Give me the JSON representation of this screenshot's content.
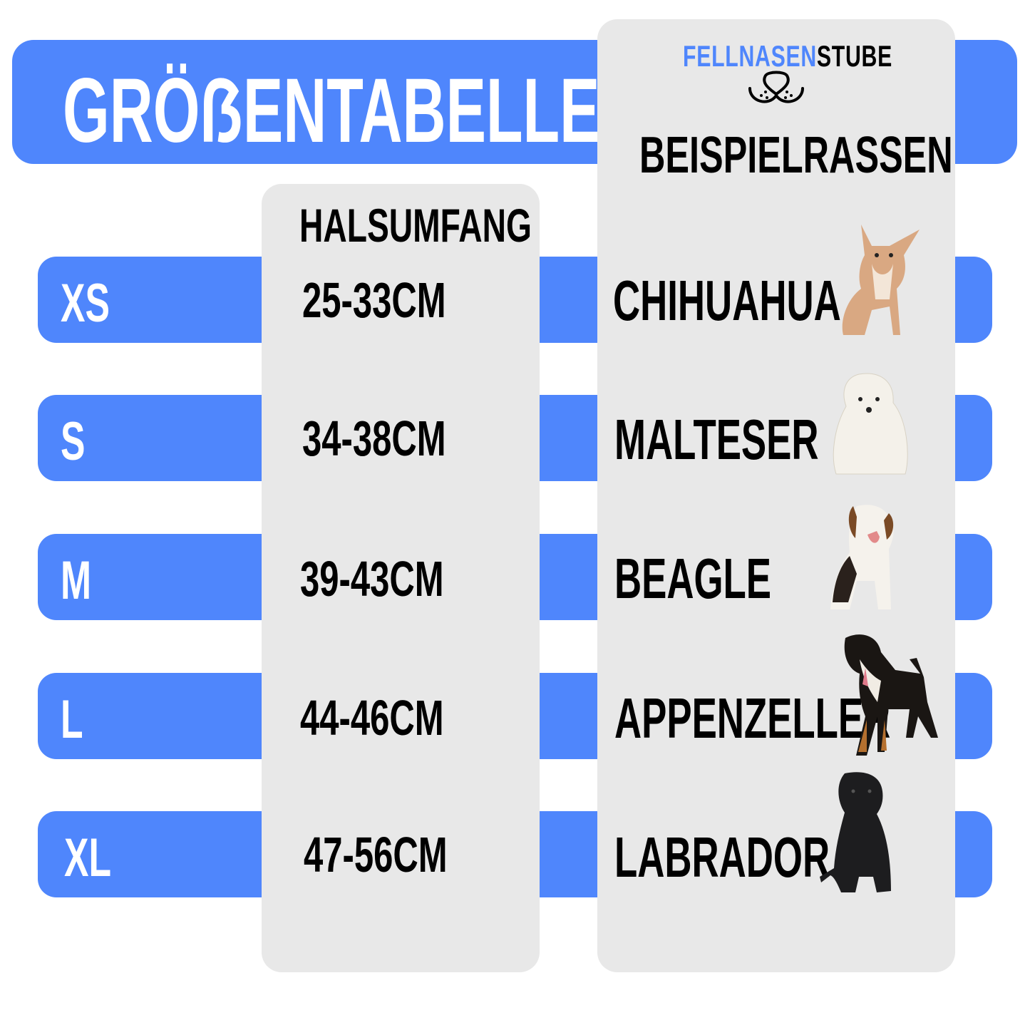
{
  "title": "GRÖẞENTABELLE",
  "logo": {
    "part1": "FELLNASEN",
    "part2": "STUBE",
    "part1_color": "#4f86fc",
    "part2_color": "#000000",
    "icon": "dog-nose-icon"
  },
  "columns": {
    "neck": "HALSUMFANG",
    "breeds": "BEISPIELRASSEN"
  },
  "colors": {
    "accent": "#4f86fc",
    "panel": "#e8e8e8"
  },
  "rows": [
    {
      "size": "XS",
      "range": "25-33CM",
      "breed": "CHIHUAHUA"
    },
    {
      "size": "S",
      "range": "34-38CM",
      "breed": "MALTESER"
    },
    {
      "size": "M",
      "range": "39-43CM",
      "breed": "BEAGLE"
    },
    {
      "size": "L",
      "range": "44-46CM",
      "breed": "APPENZELLER"
    },
    {
      "size": "XL",
      "range": "47-56CM",
      "breed": "LABRADOR"
    }
  ]
}
